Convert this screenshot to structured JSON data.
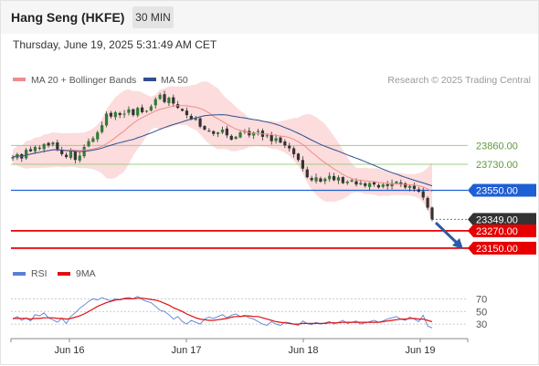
{
  "header": {
    "instrument": "Hang Seng (HKFE)",
    "interval": "30 MIN",
    "timestamp": "Thursday, June 19, 2025 5:31:49 AM CET"
  },
  "legend": {
    "items": [
      {
        "label": "MA 20 + Bollinger Bands",
        "color": "#f08c8c"
      },
      {
        "label": "MA 50",
        "color": "#2f4f8f"
      }
    ],
    "credit": "Research © 2025 Trading Central"
  },
  "rsi_legend": {
    "items": [
      {
        "label": "RSI",
        "color": "#5b7fd6"
      },
      {
        "label": "9MA",
        "color": "#e01010"
      }
    ]
  },
  "colors": {
    "up_candle": "#2e7d32",
    "down_candle": "#333333",
    "band_fill": "#fbd0d0",
    "ma20": "#f08c8c",
    "ma50": "#2f4f8f",
    "resistance": "#9fcc86",
    "pivot": "#1f5fd6",
    "support": "#e60000",
    "last_price": "#333333",
    "arrow": "#2b5aa8"
  },
  "chart_data": [
    {
      "type": "candlestick",
      "title": "Hang Seng (HKFE)",
      "x_ticks": [
        "Jun 16",
        "Jun 17",
        "Jun 18",
        "Jun 19"
      ],
      "ylim": [
        23080,
        24260
      ],
      "levels": [
        {
          "label": "23860.00",
          "value": 23860,
          "kind": "resistance"
        },
        {
          "label": "23730.00",
          "value": 23730,
          "kind": "resistance"
        },
        {
          "label": "23550.00",
          "value": 23550,
          "kind": "pivot"
        },
        {
          "label": "23349.00",
          "value": 23349,
          "kind": "last"
        },
        {
          "label": "23270.00",
          "value": 23270,
          "kind": "support"
        },
        {
          "label": "23150.00",
          "value": 23150,
          "kind": "support"
        }
      ],
      "close_series": [
        23780,
        23800,
        23770,
        23830,
        23820,
        23850,
        23840,
        23870,
        23860,
        23880,
        23830,
        23800,
        23780,
        23820,
        23760,
        23790,
        23850,
        23890,
        23910,
        23950,
        24000,
        24080,
        24060,
        24090,
        24070,
        24080,
        24110,
        24070,
        24120,
        24090,
        24100,
        24130,
        24180,
        24210,
        24160,
        24190,
        24150,
        24120,
        24100,
        24070,
        24040,
        24050,
        23990,
        23970,
        23960,
        23940,
        23950,
        23970,
        23930,
        23900,
        23920,
        23950,
        23960,
        23930,
        23950,
        23960,
        23920,
        23930,
        23890,
        23910,
        23880,
        23860,
        23840,
        23800,
        23760,
        23700,
        23640,
        23620,
        23640,
        23610,
        23630,
        23650,
        23620,
        23640,
        23600,
        23610,
        23620,
        23590,
        23600,
        23580,
        23600,
        23590,
        23570,
        23590,
        23580,
        23600,
        23610,
        23590,
        23570,
        23580,
        23560,
        23540,
        23500,
        23430,
        23349
      ],
      "rsi": {
        "ticks": [
          70,
          50,
          30
        ],
        "ylim": [
          10,
          85
        ],
        "rsi_values": [
          38,
          42,
          36,
          40,
          35,
          45,
          43,
          48,
          40,
          37,
          33,
          39,
          31,
          42,
          48,
          55,
          60,
          66,
          70,
          68,
          72,
          69,
          67,
          70,
          68,
          71,
          72,
          70,
          74,
          69,
          66,
          64,
          58,
          52,
          50,
          45,
          38,
          42,
          34,
          30,
          36,
          33,
          30,
          38,
          41,
          39,
          42,
          45,
          40,
          44,
          46,
          42,
          44,
          40,
          38,
          34,
          30,
          28,
          34,
          30,
          28,
          33,
          32,
          30,
          28,
          35,
          31,
          29,
          33,
          30,
          32,
          34,
          30,
          33,
          36,
          31,
          33,
          35,
          30,
          32,
          34,
          36,
          33,
          35,
          38,
          40,
          42,
          38,
          36,
          41,
          38,
          34,
          44,
          27,
          24
        ],
        "ma9_values": [
          39,
          39,
          39,
          39,
          38,
          39,
          39,
          40,
          40,
          40,
          39,
          39,
          38,
          39,
          41,
          43,
          46,
          50,
          54,
          58,
          61,
          64,
          66,
          68,
          69,
          70,
          70,
          70,
          71,
          71,
          70,
          69,
          68,
          66,
          63,
          60,
          56,
          53,
          50,
          46,
          43,
          40,
          38,
          37,
          36,
          36,
          37,
          38,
          39,
          41,
          42,
          42,
          43,
          43,
          42,
          42,
          40,
          38,
          36,
          34,
          33,
          32,
          31,
          30,
          30,
          31,
          31,
          31,
          31,
          31,
          31,
          32,
          32,
          32,
          33,
          33,
          33,
          33,
          33,
          33,
          33,
          33,
          33,
          34,
          35,
          36,
          37,
          38,
          38,
          39,
          39,
          38,
          38,
          36,
          34
        ]
      }
    }
  ]
}
